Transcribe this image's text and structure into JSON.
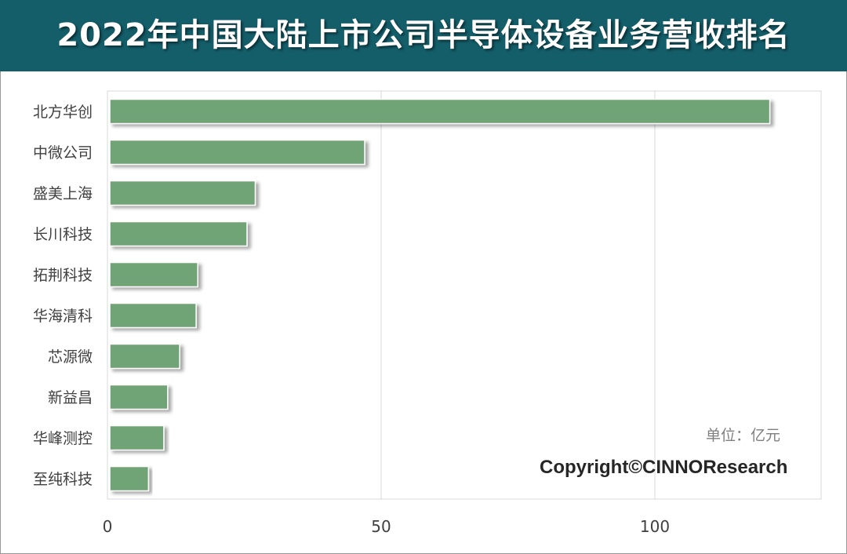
{
  "title": "2022年中国大陆上市公司半导体设备业务营收排名",
  "unit_note": "单位：亿元",
  "copyright": "Copyright©CINNOResearch",
  "colors": {
    "header_bg": "#145e6a",
    "bar": "#6fa476",
    "grid": "#d9d9d9"
  },
  "chart_data": {
    "type": "bar",
    "orientation": "horizontal",
    "categories": [
      "北方华创",
      "中微公司",
      "盛美上海",
      "长川科技",
      "拓荆科技",
      "华海清科",
      "芯源微",
      "新益昌",
      "华峰测控",
      "至纯科技"
    ],
    "values": [
      121,
      47,
      27,
      25.5,
      16.5,
      16.2,
      13.2,
      11,
      10.3,
      7.5
    ],
    "xlim": [
      0,
      130
    ],
    "xticks": [
      0,
      50,
      100
    ],
    "grid": true,
    "legend": "none"
  }
}
